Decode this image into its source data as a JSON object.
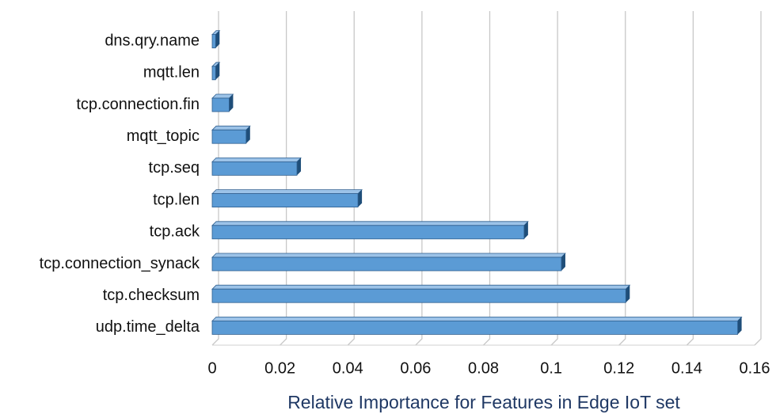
{
  "chart_data": {
    "type": "bar",
    "orientation": "horizontal",
    "x_label": "Relative Importance for Features in Edge IoT set",
    "categories": [
      "dns.qry.name",
      "mqtt.len",
      "tcp.connection.fin",
      "mqtt_topic",
      "tcp.seq",
      "tcp.len",
      "tcp.ack",
      "tcp.connection_synack",
      "tcp.checksum",
      "udp.time_delta"
    ],
    "values": [
      0.001,
      0.001,
      0.005,
      0.01,
      0.025,
      0.043,
      0.092,
      0.103,
      0.122,
      0.155
    ],
    "color": "#5b9bd5",
    "xlim": [
      0,
      0.16
    ],
    "xticks": [
      0,
      0.02,
      0.04,
      0.06,
      0.08,
      0.1,
      0.12,
      0.14,
      0.16
    ],
    "grid": true
  }
}
